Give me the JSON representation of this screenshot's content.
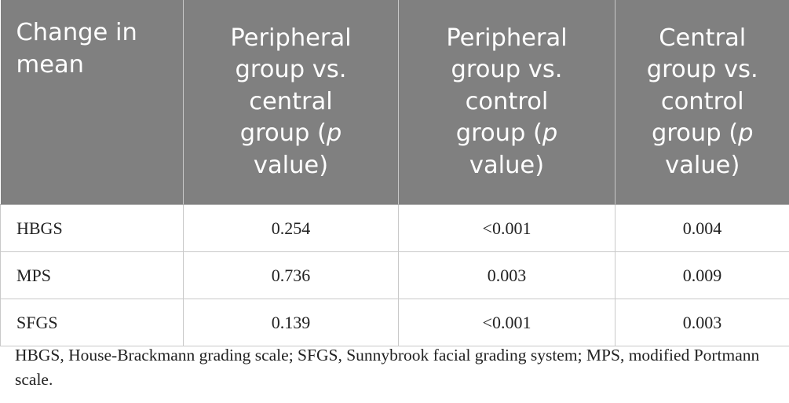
{
  "table": {
    "headers": [
      {
        "text": "Change in mean"
      },
      {
        "text": "Peripheral group vs. central group (",
        "italic": "p",
        "tail": " value)"
      },
      {
        "text": "Peripheral group vs. control group (",
        "italic": "p",
        "tail": " value)"
      },
      {
        "text": "Central group vs. control group (",
        "italic": "p",
        "tail": " value)"
      }
    ],
    "rows": [
      {
        "label": "HBGS",
        "values": [
          "0.254",
          "<0.001",
          "0.004"
        ]
      },
      {
        "label": "MPS",
        "values": [
          "0.736",
          "0.003",
          "0.009"
        ]
      },
      {
        "label": "SFGS",
        "values": [
          "0.139",
          "<0.001",
          "0.003"
        ]
      }
    ]
  },
  "footnote": "HBGS, House-Brackmann grading scale; SFGS, Sunnybrook facial grading system; MPS, modified Portmann scale.",
  "colors": {
    "header_bg": "#808080",
    "header_text": "#ffffff",
    "border": "#c9c9c9"
  }
}
